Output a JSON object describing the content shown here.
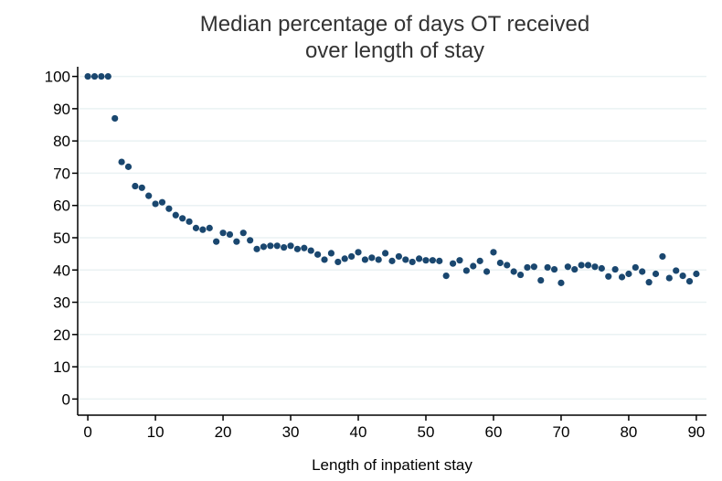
{
  "chart_data": {
    "type": "scatter",
    "title_lines": [
      "Median percentage of days OT received",
      "over length of stay"
    ],
    "xlabel": "Length of inpatient stay",
    "ylabel": "",
    "xlim": [
      -1.5,
      91.5
    ],
    "ylim": [
      -5,
      103
    ],
    "x_ticks": [
      0,
      10,
      20,
      30,
      40,
      50,
      60,
      70,
      80,
      90
    ],
    "y_ticks": [
      0,
      10,
      20,
      30,
      40,
      50,
      60,
      70,
      80,
      90,
      100
    ],
    "grid": true,
    "legend": "none",
    "marker_color": "#1a476f",
    "grid_color": "#eaf2f3",
    "points": [
      [
        0,
        100
      ],
      [
        1,
        100
      ],
      [
        2,
        100
      ],
      [
        3,
        100
      ],
      [
        4,
        87
      ],
      [
        5,
        73.5
      ],
      [
        6,
        72
      ],
      [
        7,
        66
      ],
      [
        8,
        65.5
      ],
      [
        9,
        63
      ],
      [
        10,
        60.5
      ],
      [
        11,
        61
      ],
      [
        12,
        59
      ],
      [
        13,
        57
      ],
      [
        14,
        56
      ],
      [
        15,
        55
      ],
      [
        16,
        53
      ],
      [
        17,
        52.5
      ],
      [
        18,
        53
      ],
      [
        19,
        48.8
      ],
      [
        20,
        51.5
      ],
      [
        21,
        51
      ],
      [
        22,
        48.8
      ],
      [
        23,
        51.5
      ],
      [
        24,
        49.2
      ],
      [
        25,
        46.5
      ],
      [
        26,
        47.2
      ],
      [
        27,
        47.5
      ],
      [
        28,
        47.5
      ],
      [
        29,
        47
      ],
      [
        30,
        47.5
      ],
      [
        31,
        46.5
      ],
      [
        32,
        46.8
      ],
      [
        33,
        46
      ],
      [
        34,
        44.8
      ],
      [
        35,
        43.2
      ],
      [
        36,
        45.2
      ],
      [
        37,
        42.5
      ],
      [
        38,
        43.5
      ],
      [
        39,
        44.2
      ],
      [
        40,
        45.5
      ],
      [
        41,
        43.2
      ],
      [
        42,
        43.8
      ],
      [
        43,
        43.2
      ],
      [
        44,
        45.2
      ],
      [
        45,
        42.8
      ],
      [
        46,
        44.2
      ],
      [
        47,
        43.2
      ],
      [
        48,
        42.5
      ],
      [
        49,
        43.5
      ],
      [
        50,
        43
      ],
      [
        51,
        43
      ],
      [
        52,
        42.8
      ],
      [
        53,
        38.2
      ],
      [
        54,
        42
      ],
      [
        55,
        43
      ],
      [
        56,
        39.8
      ],
      [
        57,
        41.2
      ],
      [
        58,
        42.8
      ],
      [
        59,
        39.5
      ],
      [
        60,
        45.5
      ],
      [
        61,
        42.2
      ],
      [
        62,
        41.5
      ],
      [
        63,
        39.5
      ],
      [
        64,
        38.5
      ],
      [
        65,
        40.8
      ],
      [
        66,
        41
      ],
      [
        67,
        36.8
      ],
      [
        68,
        40.8
      ],
      [
        69,
        40.2
      ],
      [
        70,
        36
      ],
      [
        71,
        41
      ],
      [
        72,
        40.2
      ],
      [
        73,
        41.5
      ],
      [
        74,
        41.5
      ],
      [
        75,
        41
      ],
      [
        76,
        40.5
      ],
      [
        77,
        38
      ],
      [
        78,
        40.2
      ],
      [
        79,
        37.8
      ],
      [
        80,
        38.8
      ],
      [
        81,
        40.8
      ],
      [
        82,
        39.5
      ],
      [
        83,
        36.2
      ],
      [
        84,
        38.8
      ],
      [
        85,
        44.2
      ],
      [
        86,
        37.5
      ],
      [
        87,
        39.8
      ],
      [
        88,
        38.2
      ],
      [
        89,
        36.5
      ],
      [
        90,
        38.8
      ]
    ]
  }
}
